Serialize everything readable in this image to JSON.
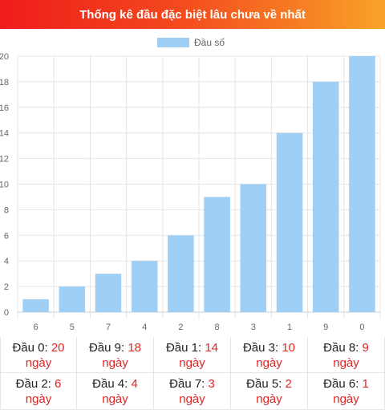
{
  "title": "Thống kê đầu đặc biệt lâu chưa về nhất",
  "unit_text": "ngày",
  "chart_data": {
    "type": "bar",
    "categories": [
      "6",
      "5",
      "7",
      "4",
      "2",
      "8",
      "3",
      "1",
      "9",
      "0"
    ],
    "series": [
      {
        "name": "Đầu số",
        "values": [
          1,
          2,
          3,
          4,
          6,
          9,
          10,
          14,
          18,
          20
        ],
        "color": "#9fcff4"
      }
    ],
    "yticks": [
      0,
      2,
      4,
      6,
      8,
      10,
      12,
      14,
      16,
      18,
      20
    ],
    "ylim": [
      0,
      20
    ],
    "grid": true,
    "legend": "top-center"
  },
  "stats": [
    {
      "label": "Đầu 0:",
      "value": "20"
    },
    {
      "label": "Đầu 9:",
      "value": "18"
    },
    {
      "label": "Đầu 1:",
      "value": "14"
    },
    {
      "label": "Đầu 3:",
      "value": "10"
    },
    {
      "label": "Đầu 8:",
      "value": "9"
    },
    {
      "label": "Đầu 2:",
      "value": "6"
    },
    {
      "label": "Đầu 4:",
      "value": "4"
    },
    {
      "label": "Đầu 7:",
      "value": "3"
    },
    {
      "label": "Đầu 5:",
      "value": "2"
    },
    {
      "label": "Đầu 6:",
      "value": "1"
    }
  ]
}
